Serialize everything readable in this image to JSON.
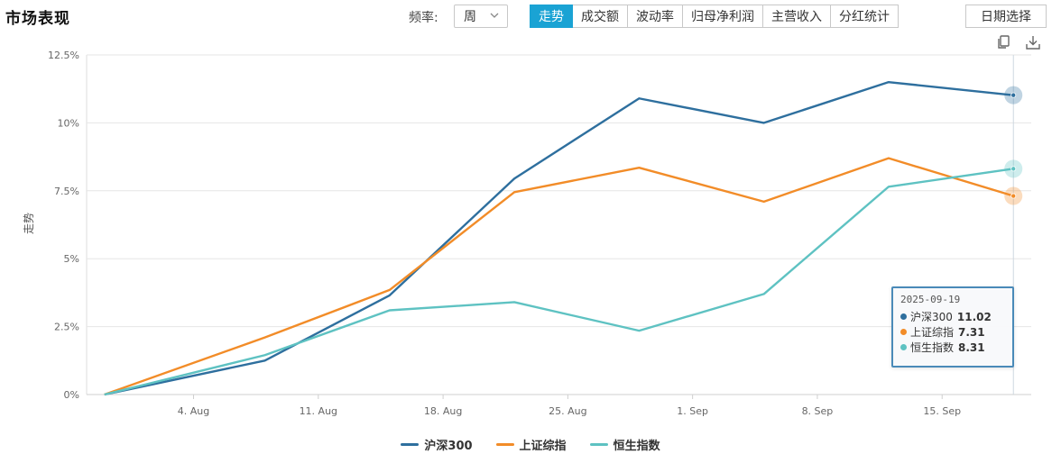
{
  "header": {
    "title": "市场表现",
    "freq_label": "频率:",
    "freq_value": "周",
    "tabs": [
      {
        "label": "走势",
        "active": true
      },
      {
        "label": "成交额",
        "active": false
      },
      {
        "label": "波动率",
        "active": false
      },
      {
        "label": "归母净利润",
        "active": false
      },
      {
        "label": "主营收入",
        "active": false
      },
      {
        "label": "分红统计",
        "active": false
      }
    ],
    "date_button": "日期选择",
    "icons": [
      "copy-icon",
      "download-icon"
    ]
  },
  "colors": {
    "accent": "#1aa3d4",
    "grid": "#e6e6e6",
    "axis_text": "#666666"
  },
  "chart_data": {
    "type": "line",
    "ylabel": "走势",
    "ylim": [
      0,
      12.5
    ],
    "yticks": [
      0,
      2.5,
      5,
      7.5,
      10,
      12.5
    ],
    "ytick_labels": [
      "0%",
      "2.5%",
      "5%",
      "7.5%",
      "10%",
      "12.5%"
    ],
    "x": [
      "2025-07-30",
      "2025-08-08",
      "2025-08-15",
      "2025-08-22",
      "2025-08-29",
      "2025-09-05",
      "2025-09-12",
      "2025-09-19"
    ],
    "xlim": [
      "2025-07-29",
      "2025-09-20"
    ],
    "xticks": [
      "2025-08-04",
      "2025-08-11",
      "2025-08-18",
      "2025-08-25",
      "2025-09-01",
      "2025-09-08",
      "2025-09-15"
    ],
    "xtick_labels": [
      "4. Aug",
      "11. Aug",
      "18. Aug",
      "25. Aug",
      "1. Sep",
      "8. Sep",
      "15. Sep"
    ],
    "grid": true,
    "legend": "bottom",
    "series": [
      {
        "name": "沪深300",
        "color": "#2e6f9e",
        "values": [
          0,
          1.25,
          3.65,
          7.95,
          10.9,
          10.0,
          11.5,
          11.02
        ]
      },
      {
        "name": "上证综指",
        "color": "#f28c28",
        "values": [
          0,
          2.1,
          3.85,
          7.45,
          8.35,
          7.1,
          8.7,
          7.31
        ]
      },
      {
        "name": "恒生指数",
        "color": "#5ec2c2",
        "values": [
          0,
          1.45,
          3.1,
          3.4,
          2.35,
          3.7,
          7.65,
          8.31
        ]
      }
    ]
  },
  "tooltip": {
    "date": "2025-09-19",
    "rows": [
      {
        "name": "沪深300",
        "value": "11.02",
        "color": "#2e6f9e"
      },
      {
        "name": "上证综指",
        "value": "7.31",
        "color": "#f28c28"
      },
      {
        "name": "恒生指数",
        "value": "8.31",
        "color": "#5ec2c2"
      }
    ]
  }
}
